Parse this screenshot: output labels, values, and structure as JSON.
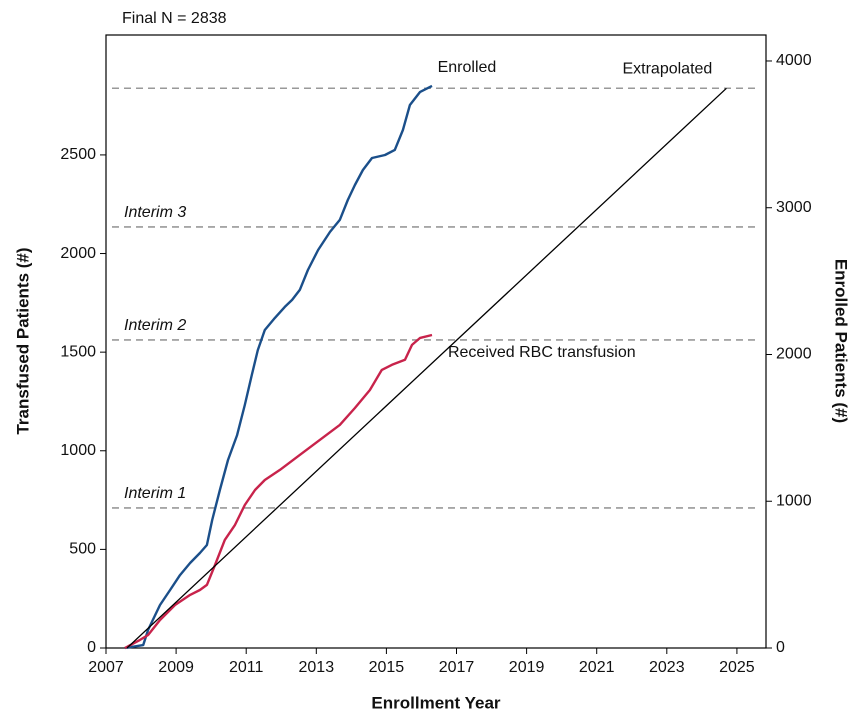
{
  "chart_data": {
    "type": "line",
    "annotation": "Final N = 2838",
    "x_label": "Enrollment Year",
    "y_label": "Transfused Patients (#)",
    "y2_label": "Enrolled Patients (#)",
    "xlim": [
      2007,
      2025.83
    ],
    "xticks": [
      2007,
      2009,
      2011,
      2013,
      2015,
      2017,
      2019,
      2021,
      2023,
      2025
    ],
    "ylim": [
      0,
      3108
    ],
    "yticks": [
      0,
      500,
      1000,
      1500,
      2000,
      2500
    ],
    "y2lim": [
      0,
      4177
    ],
    "y2ticks": [
      0,
      1000,
      2000,
      3000,
      4000
    ],
    "reference_lines": [
      {
        "value": 710,
        "label": "Interim 1"
      },
      {
        "value": 1562,
        "label": "Interim 2"
      },
      {
        "value": 2135,
        "label": "Interim 3"
      },
      {
        "value": 2838
      }
    ],
    "reference_color": "#999999",
    "series": [
      {
        "name": "Enrolled",
        "color": "#1b4f8a",
        "axis": "y2",
        "x": [
          2007.54,
          2008.06,
          2008.2,
          2008.54,
          2008.83,
          2009.11,
          2009.4,
          2009.68,
          2009.88,
          2010.03,
          2010.25,
          2010.48,
          2010.74,
          2010.96,
          2011.16,
          2011.33,
          2011.53,
          2011.82,
          2012.1,
          2012.31,
          2012.53,
          2012.76,
          2013.05,
          2013.39,
          2013.67,
          2013.9,
          2014.1,
          2014.33,
          2014.59,
          2014.96,
          2015.24,
          2015.47,
          2015.67,
          2015.96,
          2016.3
        ],
        "values": [
          0,
          20,
          123,
          293,
          395,
          497,
          579,
          647,
          702,
          872,
          1077,
          1281,
          1451,
          1656,
          1860,
          2030,
          2167,
          2249,
          2324,
          2372,
          2440,
          2576,
          2712,
          2835,
          2917,
          3053,
          3155,
          3257,
          3339,
          3359,
          3394,
          3530,
          3700,
          3789,
          3830
        ]
      },
      {
        "name": "Received RBC transfusion",
        "color": "#c8234b",
        "x": [
          2007.54,
          2007.97,
          2008.2,
          2008.54,
          2008.97,
          2009.4,
          2009.68,
          2009.88,
          2010.11,
          2010.39,
          2010.68,
          2010.96,
          2011.25,
          2011.53,
          2011.96,
          2012.53,
          2013.1,
          2013.67,
          2014.1,
          2014.53,
          2014.87,
          2015.16,
          2015.53,
          2015.73,
          2015.96,
          2016.3
        ],
        "values": [
          0,
          41,
          66,
          142,
          218,
          269,
          294,
          320,
          421,
          548,
          624,
          725,
          801,
          852,
          903,
          979,
          1055,
          1131,
          1217,
          1308,
          1410,
          1436,
          1461,
          1537,
          1572,
          1587
        ]
      },
      {
        "name": "Extrapolated",
        "color": "#000000",
        "x": [
          2007.6,
          2024.7
        ],
        "values": [
          0,
          2838
        ]
      }
    ]
  }
}
